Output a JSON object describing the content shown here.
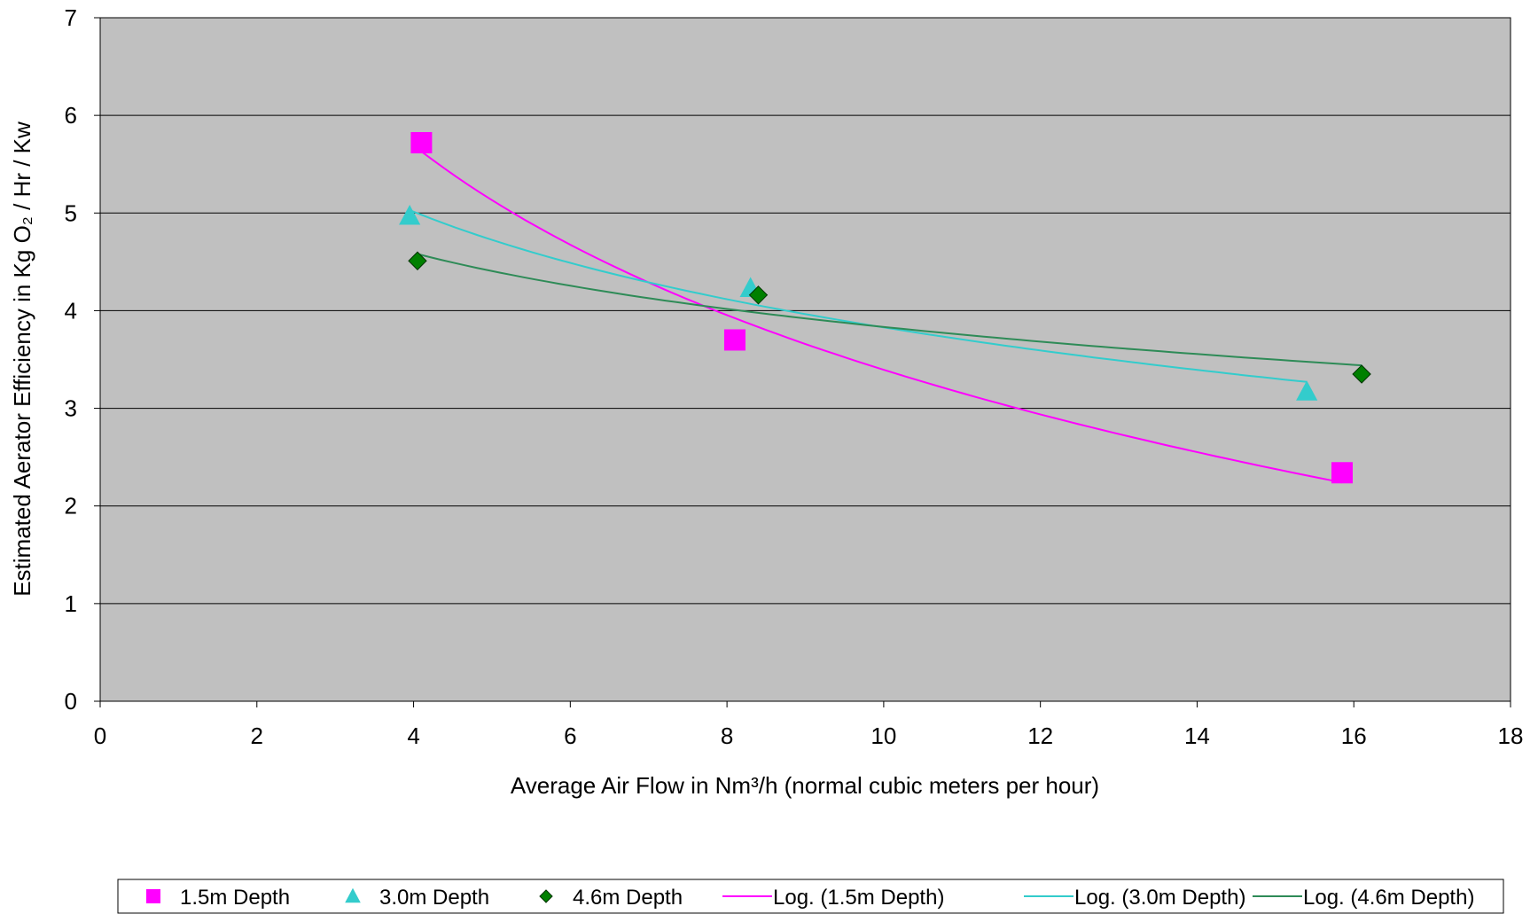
{
  "chart_data": {
    "type": "scatter",
    "xlabel": "Average Air Flow in Nm³/h (normal cubic meters per hour)",
    "ylabel": "Estimated Aerator Efficiency in Kg O₂ / Hr / Kw",
    "xlim": [
      0,
      18
    ],
    "ylim": [
      0,
      7
    ],
    "x_ticks": [
      0,
      2,
      4,
      6,
      8,
      10,
      12,
      14,
      16,
      18
    ],
    "y_ticks": [
      0,
      1,
      2,
      3,
      4,
      5,
      6,
      7
    ],
    "grid": "horizontal",
    "plot_background": "#c0c0c0",
    "legend_position": "bottom",
    "series": [
      {
        "name": "1.5m Depth",
        "marker": "square",
        "color": "#ff00ff",
        "points": [
          [
            4.1,
            5.72
          ],
          [
            8.1,
            3.7
          ],
          [
            15.85,
            2.34
          ]
        ]
      },
      {
        "name": "3.0m Depth",
        "marker": "triangle",
        "color": "#33cccc",
        "points": [
          [
            3.95,
            4.97
          ],
          [
            8.3,
            4.23
          ],
          [
            15.4,
            3.17
          ]
        ]
      },
      {
        "name": "4.6m Depth",
        "marker": "diamond",
        "color": "#008000",
        "points": [
          [
            4.05,
            4.51
          ],
          [
            8.4,
            4.16
          ],
          [
            16.1,
            3.35
          ]
        ]
      }
    ],
    "trendlines": [
      {
        "name": "Log. (1.5m Depth)",
        "type": "logarithmic",
        "color": "#ff00ff",
        "x_range": [
          4.1,
          15.85
        ],
        "endpoints": [
          5.63,
          2.24
        ]
      },
      {
        "name": "Log. (3.0m Depth)",
        "type": "logarithmic",
        "color": "#33cccc",
        "x_range": [
          3.95,
          15.4
        ],
        "endpoints": [
          5.03,
          3.27
        ]
      },
      {
        "name": "Log. (4.6m Depth)",
        "type": "logarithmic",
        "color": "#2e8b57",
        "x_range": [
          4.05,
          16.1
        ],
        "endpoints": [
          4.58,
          3.44
        ]
      }
    ]
  }
}
